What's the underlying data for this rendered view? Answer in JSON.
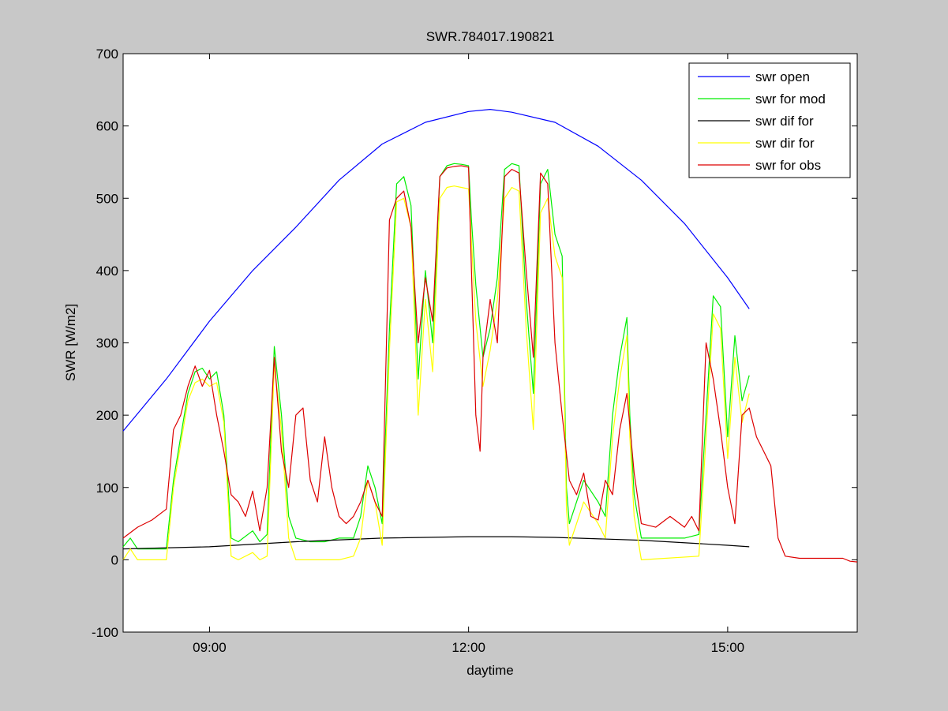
{
  "chart_data": {
    "type": "line",
    "title": "SWR.784017.190821",
    "xlabel": "daytime",
    "ylabel": "SWR [W/m2]",
    "xlim": [
      "08:00",
      "16:30"
    ],
    "ylim": [
      -100,
      700
    ],
    "x_ticks": [
      "09:00",
      "12:00",
      "15:00"
    ],
    "y_ticks": [
      -100,
      0,
      100,
      200,
      300,
      400,
      500,
      600,
      700
    ],
    "grid": false,
    "legend": "top-right",
    "series": [
      {
        "name": "swr open",
        "color": "#0000ff",
        "points": [
          [
            "08:00",
            178
          ],
          [
            "08:30",
            250
          ],
          [
            "09:00",
            330
          ],
          [
            "09:30",
            400
          ],
          [
            "10:00",
            460
          ],
          [
            "10:30",
            525
          ],
          [
            "11:00",
            575
          ],
          [
            "11:30",
            605
          ],
          [
            "12:00",
            620
          ],
          [
            "12:15",
            623
          ],
          [
            "12:30",
            619
          ],
          [
            "13:00",
            605
          ],
          [
            "13:30",
            572
          ],
          [
            "14:00",
            525
          ],
          [
            "14:30",
            465
          ],
          [
            "15:00",
            390
          ],
          [
            "15:15",
            347
          ]
        ]
      },
      {
        "name": "swr for mod",
        "color": "#00ee00",
        "points": [
          [
            "08:00",
            18
          ],
          [
            "08:05",
            30
          ],
          [
            "08:10",
            15
          ],
          [
            "08:30",
            15
          ],
          [
            "08:35",
            110
          ],
          [
            "08:40",
            170
          ],
          [
            "08:45",
            230
          ],
          [
            "08:50",
            260
          ],
          [
            "08:55",
            265
          ],
          [
            "09:00",
            250
          ],
          [
            "09:05",
            260
          ],
          [
            "09:10",
            200
          ],
          [
            "09:15",
            30
          ],
          [
            "09:20",
            25
          ],
          [
            "09:30",
            40
          ],
          [
            "09:35",
            25
          ],
          [
            "09:40",
            35
          ],
          [
            "09:45",
            295
          ],
          [
            "09:50",
            200
          ],
          [
            "09:55",
            60
          ],
          [
            "10:00",
            30
          ],
          [
            "10:10",
            25
          ],
          [
            "10:20",
            25
          ],
          [
            "10:30",
            30
          ],
          [
            "10:40",
            30
          ],
          [
            "10:45",
            60
          ],
          [
            "10:50",
            130
          ],
          [
            "10:55",
            100
          ],
          [
            "11:00",
            50
          ],
          [
            "11:05",
            320
          ],
          [
            "11:10",
            520
          ],
          [
            "11:15",
            530
          ],
          [
            "11:20",
            490
          ],
          [
            "11:25",
            250
          ],
          [
            "11:30",
            400
          ],
          [
            "11:35",
            300
          ],
          [
            "11:40",
            530
          ],
          [
            "11:45",
            545
          ],
          [
            "11:50",
            548
          ],
          [
            "11:55",
            547
          ],
          [
            "12:00",
            545
          ],
          [
            "12:02",
            470
          ],
          [
            "12:05",
            380
          ],
          [
            "12:10",
            280
          ],
          [
            "12:15",
            320
          ],
          [
            "12:20",
            390
          ],
          [
            "12:25",
            540
          ],
          [
            "12:30",
            548
          ],
          [
            "12:35",
            545
          ],
          [
            "12:40",
            360
          ],
          [
            "12:45",
            230
          ],
          [
            "12:50",
            520
          ],
          [
            "12:55",
            540
          ],
          [
            "13:00",
            450
          ],
          [
            "13:05",
            420
          ],
          [
            "13:08",
            100
          ],
          [
            "13:10",
            50
          ],
          [
            "13:20",
            110
          ],
          [
            "13:30",
            80
          ],
          [
            "13:35",
            60
          ],
          [
            "13:40",
            200
          ],
          [
            "13:45",
            280
          ],
          [
            "13:50",
            335
          ],
          [
            "13:52",
            200
          ],
          [
            "13:55",
            90
          ],
          [
            "14:00",
            30
          ],
          [
            "14:10",
            30
          ],
          [
            "14:20",
            30
          ],
          [
            "14:30",
            30
          ],
          [
            "14:40",
            35
          ],
          [
            "14:45",
            200
          ],
          [
            "14:50",
            365
          ],
          [
            "14:55",
            350
          ],
          [
            "15:00",
            170
          ],
          [
            "15:05",
            310
          ],
          [
            "15:10",
            220
          ],
          [
            "15:15",
            255
          ]
        ]
      },
      {
        "name": "swr dif for",
        "color": "#000000",
        "points": [
          [
            "08:00",
            15
          ],
          [
            "09:00",
            18
          ],
          [
            "10:00",
            25
          ],
          [
            "11:00",
            30
          ],
          [
            "12:00",
            32
          ],
          [
            "12:30",
            32
          ],
          [
            "13:00",
            31
          ],
          [
            "14:00",
            27
          ],
          [
            "15:00",
            20
          ],
          [
            "15:15",
            18
          ]
        ]
      },
      {
        "name": "swr dir for",
        "color": "#ffff00",
        "points": [
          [
            "08:00",
            0
          ],
          [
            "08:05",
            15
          ],
          [
            "08:10",
            0
          ],
          [
            "08:30",
            0
          ],
          [
            "08:35",
            100
          ],
          [
            "08:40",
            160
          ],
          [
            "08:45",
            220
          ],
          [
            "08:50",
            245
          ],
          [
            "08:55",
            250
          ],
          [
            "09:00",
            240
          ],
          [
            "09:05",
            245
          ],
          [
            "09:10",
            190
          ],
          [
            "09:15",
            5
          ],
          [
            "09:20",
            0
          ],
          [
            "09:30",
            10
          ],
          [
            "09:35",
            0
          ],
          [
            "09:40",
            5
          ],
          [
            "09:45",
            270
          ],
          [
            "09:50",
            180
          ],
          [
            "09:55",
            30
          ],
          [
            "10:00",
            0
          ],
          [
            "10:30",
            0
          ],
          [
            "10:40",
            5
          ],
          [
            "10:45",
            30
          ],
          [
            "10:50",
            110
          ],
          [
            "10:55",
            80
          ],
          [
            "11:00",
            20
          ],
          [
            "11:05",
            290
          ],
          [
            "11:10",
            495
          ],
          [
            "11:15",
            500
          ],
          [
            "11:20",
            460
          ],
          [
            "11:25",
            200
          ],
          [
            "11:30",
            360
          ],
          [
            "11:35",
            260
          ],
          [
            "11:40",
            500
          ],
          [
            "11:45",
            515
          ],
          [
            "11:50",
            517
          ],
          [
            "11:55",
            515
          ],
          [
            "12:00",
            513
          ],
          [
            "12:02",
            440
          ],
          [
            "12:05",
            330
          ],
          [
            "12:10",
            240
          ],
          [
            "12:15",
            290
          ],
          [
            "12:20",
            360
          ],
          [
            "12:25",
            500
          ],
          [
            "12:30",
            515
          ],
          [
            "12:35",
            510
          ],
          [
            "12:40",
            320
          ],
          [
            "12:45",
            180
          ],
          [
            "12:50",
            480
          ],
          [
            "12:55",
            500
          ],
          [
            "13:00",
            420
          ],
          [
            "13:05",
            390
          ],
          [
            "13:08",
            70
          ],
          [
            "13:10",
            20
          ],
          [
            "13:20",
            80
          ],
          [
            "13:30",
            50
          ],
          [
            "13:35",
            30
          ],
          [
            "13:40",
            170
          ],
          [
            "13:45",
            250
          ],
          [
            "13:50",
            310
          ],
          [
            "13:52",
            170
          ],
          [
            "13:55",
            60
          ],
          [
            "14:00",
            0
          ],
          [
            "14:40",
            5
          ],
          [
            "14:45",
            170
          ],
          [
            "14:50",
            340
          ],
          [
            "14:55",
            320
          ],
          [
            "15:00",
            140
          ],
          [
            "15:05",
            280
          ],
          [
            "15:10",
            190
          ],
          [
            "15:15",
            230
          ]
        ]
      },
      {
        "name": "swr for obs",
        "color": "#dd0000",
        "points": [
          [
            "08:00",
            30
          ],
          [
            "08:10",
            45
          ],
          [
            "08:20",
            55
          ],
          [
            "08:30",
            70
          ],
          [
            "08:35",
            180
          ],
          [
            "08:40",
            200
          ],
          [
            "08:45",
            240
          ],
          [
            "08:50",
            268
          ],
          [
            "08:55",
            240
          ],
          [
            "09:00",
            262
          ],
          [
            "09:05",
            200
          ],
          [
            "09:10",
            150
          ],
          [
            "09:15",
            90
          ],
          [
            "09:20",
            80
          ],
          [
            "09:25",
            60
          ],
          [
            "09:30",
            95
          ],
          [
            "09:35",
            40
          ],
          [
            "09:40",
            100
          ],
          [
            "09:45",
            280
          ],
          [
            "09:50",
            150
          ],
          [
            "09:55",
            100
          ],
          [
            "10:00",
            200
          ],
          [
            "10:05",
            210
          ],
          [
            "10:10",
            110
          ],
          [
            "10:15",
            80
          ],
          [
            "10:20",
            170
          ],
          [
            "10:25",
            100
          ],
          [
            "10:30",
            60
          ],
          [
            "10:35",
            50
          ],
          [
            "10:40",
            60
          ],
          [
            "10:45",
            80
          ],
          [
            "10:50",
            110
          ],
          [
            "10:55",
            80
          ],
          [
            "11:00",
            60
          ],
          [
            "11:05",
            470
          ],
          [
            "11:10",
            500
          ],
          [
            "11:15",
            510
          ],
          [
            "11:20",
            460
          ],
          [
            "11:25",
            300
          ],
          [
            "11:30",
            390
          ],
          [
            "11:35",
            330
          ],
          [
            "11:40",
            530
          ],
          [
            "11:45",
            542
          ],
          [
            "11:50",
            544
          ],
          [
            "11:55",
            545
          ],
          [
            "12:00",
            543
          ],
          [
            "12:02",
            400
          ],
          [
            "12:05",
            200
          ],
          [
            "12:08",
            150
          ],
          [
            "12:10",
            280
          ],
          [
            "12:15",
            360
          ],
          [
            "12:20",
            300
          ],
          [
            "12:25",
            530
          ],
          [
            "12:30",
            540
          ],
          [
            "12:35",
            535
          ],
          [
            "12:40",
            400
          ],
          [
            "12:45",
            280
          ],
          [
            "12:50",
            535
          ],
          [
            "12:55",
            520
          ],
          [
            "13:00",
            300
          ],
          [
            "13:05",
            200
          ],
          [
            "13:10",
            110
          ],
          [
            "13:15",
            90
          ],
          [
            "13:20",
            120
          ],
          [
            "13:25",
            60
          ],
          [
            "13:30",
            55
          ],
          [
            "13:35",
            110
          ],
          [
            "13:40",
            90
          ],
          [
            "13:45",
            180
          ],
          [
            "13:50",
            230
          ],
          [
            "13:55",
            120
          ],
          [
            "14:00",
            50
          ],
          [
            "14:10",
            45
          ],
          [
            "14:20",
            60
          ],
          [
            "14:30",
            45
          ],
          [
            "14:35",
            60
          ],
          [
            "14:40",
            40
          ],
          [
            "14:45",
            300
          ],
          [
            "14:50",
            250
          ],
          [
            "14:55",
            180
          ],
          [
            "15:00",
            100
          ],
          [
            "15:05",
            50
          ],
          [
            "15:10",
            200
          ],
          [
            "15:15",
            210
          ],
          [
            "15:20",
            170
          ],
          [
            "15:25",
            150
          ],
          [
            "15:30",
            130
          ],
          [
            "15:35",
            30
          ],
          [
            "15:40",
            5
          ],
          [
            "15:50",
            2
          ],
          [
            "16:00",
            2
          ],
          [
            "16:20",
            2
          ],
          [
            "16:25",
            -2
          ],
          [
            "16:30",
            -3
          ]
        ]
      }
    ]
  }
}
